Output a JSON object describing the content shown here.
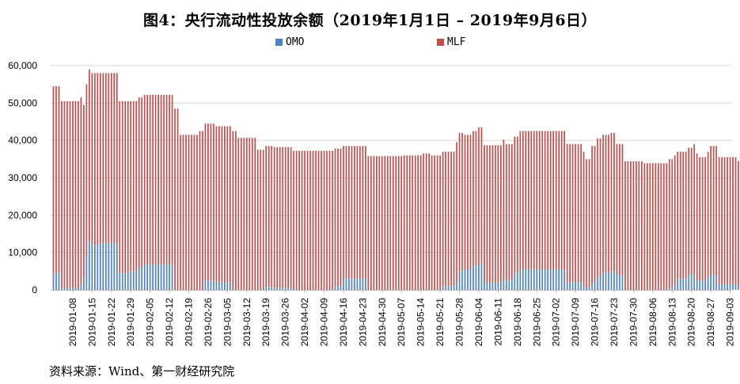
{
  "title": "图4：央行流动性投放余额（2019年1月1日 – 2019年9月6日）",
  "source": "资料来源：Wind、第一财经研究院",
  "chart_data": {
    "type": "bar",
    "stacked": true,
    "series": [
      {
        "name": "OMO",
        "color": "#4f81bd"
      },
      {
        "name": "MLF",
        "color": "#c0504d"
      }
    ],
    "y_tick_labels": [
      "0",
      "10,000",
      "20,000",
      "30,000",
      "40,000",
      "50,000",
      "60,000"
    ],
    "ylim": [
      0,
      60000
    ],
    "x_tick_labels": [
      "2019-01-08",
      "2019-01-15",
      "2019-01-22",
      "2019-01-29",
      "2019-02-05",
      "2019-02-12",
      "2019-02-19",
      "2019-02-26",
      "2019-03-05",
      "2019-03-12",
      "2019-03-19",
      "2019-03-26",
      "2019-04-02",
      "2019-04-09",
      "2019-04-16",
      "2019-04-23",
      "2019-04-30",
      "2019-05-07",
      "2019-05-14",
      "2019-05-21",
      "2019-05-28",
      "2019-06-04",
      "2019-06-11",
      "2019-06-18",
      "2019-06-25",
      "2019-07-02",
      "2019-07-09",
      "2019-07-16",
      "2019-07-23",
      "2019-07-30",
      "2019-08-06",
      "2019-08-13",
      "2019-08-20",
      "2019-08-27",
      "2019-09-03"
    ],
    "grid": true,
    "legend_position": "top",
    "segments": [
      {
        "start": "2019-01-01",
        "end": "2019-01-03",
        "total": 54500,
        "omo": 4500
      },
      {
        "start": "2019-01-04",
        "end": "2019-01-10",
        "total": 50500,
        "omo": 500
      },
      {
        "start": "2019-01-11",
        "end": "2019-01-11",
        "total": 51500,
        "omo": 1500
      },
      {
        "start": "2019-01-12",
        "end": "2019-01-12",
        "total": 49500,
        "omo": 3500
      },
      {
        "start": "2019-01-13",
        "end": "2019-01-13",
        "total": 55000,
        "omo": 9000
      },
      {
        "start": "2019-01-14",
        "end": "2019-01-14",
        "total": 59000,
        "omo": 13000
      },
      {
        "start": "2019-01-15",
        "end": "2019-01-17",
        "total": 58000,
        "omo": 12000
      },
      {
        "start": "2019-01-18",
        "end": "2019-01-24",
        "total": 58000,
        "omo": 12500
      },
      {
        "start": "2019-01-25",
        "end": "2019-01-28",
        "total": 50500,
        "omo": 4500
      },
      {
        "start": "2019-01-29",
        "end": "2019-01-31",
        "total": 50500,
        "omo": 5000
      },
      {
        "start": "2019-02-01",
        "end": "2019-02-02",
        "total": 51500,
        "omo": 6000
      },
      {
        "start": "2019-02-03",
        "end": "2019-02-13",
        "total": 52200,
        "omo": 6800
      },
      {
        "start": "2019-02-14",
        "end": "2019-02-15",
        "total": 48500,
        "omo": 0
      },
      {
        "start": "2019-02-16",
        "end": "2019-02-22",
        "total": 41500,
        "omo": 0
      },
      {
        "start": "2019-02-23",
        "end": "2019-02-24",
        "total": 42500,
        "omo": 0
      },
      {
        "start": "2019-02-25",
        "end": "2019-02-28",
        "total": 44500,
        "omo": 2500
      },
      {
        "start": "2019-03-01",
        "end": "2019-03-06",
        "total": 43800,
        "omo": 2000
      },
      {
        "start": "2019-03-07",
        "end": "2019-03-08",
        "total": 42500,
        "omo": 0
      },
      {
        "start": "2019-03-09",
        "end": "2019-03-15",
        "total": 40700,
        "omo": 0
      },
      {
        "start": "2019-03-16",
        "end": "2019-03-18",
        "total": 37500,
        "omo": 0
      },
      {
        "start": "2019-03-19",
        "end": "2019-03-21",
        "total": 38500,
        "omo": 800
      },
      {
        "start": "2019-03-22",
        "end": "2019-03-28",
        "total": 38200,
        "omo": 500
      },
      {
        "start": "2019-03-29",
        "end": "2019-04-12",
        "total": 37200,
        "omo": 0
      },
      {
        "start": "2019-04-13",
        "end": "2019-04-15",
        "total": 37800,
        "omo": 1000
      },
      {
        "start": "2019-04-16",
        "end": "2019-04-24",
        "total": 38500,
        "omo": 3000
      },
      {
        "start": "2019-04-25",
        "end": "2019-05-07",
        "total": 35800,
        "omo": 0
      },
      {
        "start": "2019-05-08",
        "end": "2019-05-14",
        "total": 36000,
        "omo": 0
      },
      {
        "start": "2019-05-15",
        "end": "2019-05-17",
        "total": 36500,
        "omo": 0
      },
      {
        "start": "2019-05-18",
        "end": "2019-05-21",
        "total": 36000,
        "omo": 0
      },
      {
        "start": "2019-05-22",
        "end": "2019-05-26",
        "total": 37000,
        "omo": 1000
      },
      {
        "start": "2019-05-27",
        "end": "2019-05-27",
        "total": 39500,
        "omo": 2000
      },
      {
        "start": "2019-05-28",
        "end": "2019-05-29",
        "total": 42000,
        "omo": 5000
      },
      {
        "start": "2019-05-30",
        "end": "2019-06-01",
        "total": 41500,
        "omo": 5500
      },
      {
        "start": "2019-06-02",
        "end": "2019-06-03",
        "total": 42500,
        "omo": 6500
      },
      {
        "start": "2019-06-04",
        "end": "2019-06-05",
        "total": 43500,
        "omo": 7000
      },
      {
        "start": "2019-06-06",
        "end": "2019-06-12",
        "total": 38700,
        "omo": 2000
      },
      {
        "start": "2019-06-13",
        "end": "2019-06-13",
        "total": 40200,
        "omo": 3000
      },
      {
        "start": "2019-06-14",
        "end": "2019-06-16",
        "total": 39000,
        "omo": 2500
      },
      {
        "start": "2019-06-17",
        "end": "2019-06-18",
        "total": 41000,
        "omo": 4500
      },
      {
        "start": "2019-06-19",
        "end": "2019-07-05",
        "total": 42500,
        "omo": 5500
      },
      {
        "start": "2019-07-06",
        "end": "2019-07-11",
        "total": 39000,
        "omo": 2000
      },
      {
        "start": "2019-07-12",
        "end": "2019-07-12",
        "total": 37000,
        "omo": 1000
      },
      {
        "start": "2019-07-13",
        "end": "2019-07-14",
        "total": 35000,
        "omo": 500
      },
      {
        "start": "2019-07-15",
        "end": "2019-07-16",
        "total": 38500,
        "omo": 2000
      },
      {
        "start": "2019-07-17",
        "end": "2019-07-18",
        "total": 40500,
        "omo": 3500
      },
      {
        "start": "2019-07-19",
        "end": "2019-07-21",
        "total": 41500,
        "omo": 4500
      },
      {
        "start": "2019-07-22",
        "end": "2019-07-23",
        "total": 42000,
        "omo": 5000
      },
      {
        "start": "2019-07-24",
        "end": "2019-07-26",
        "total": 39000,
        "omo": 4000
      },
      {
        "start": "2019-07-27",
        "end": "2019-08-02",
        "total": 34400,
        "omo": 0
      },
      {
        "start": "2019-08-03",
        "end": "2019-08-11",
        "total": 33900,
        "omo": 0
      },
      {
        "start": "2019-08-12",
        "end": "2019-08-13",
        "total": 35000,
        "omo": 500
      },
      {
        "start": "2019-08-14",
        "end": "2019-08-14",
        "total": 36000,
        "omo": 1500
      },
      {
        "start": "2019-08-15",
        "end": "2019-08-18",
        "total": 37000,
        "omo": 3000
      },
      {
        "start": "2019-08-19",
        "end": "2019-08-20",
        "total": 38000,
        "omo": 4000
      },
      {
        "start": "2019-08-21",
        "end": "2019-08-21",
        "total": 39000,
        "omo": 4500
      },
      {
        "start": "2019-08-22",
        "end": "2019-08-22",
        "total": 36500,
        "omo": 2500
      },
      {
        "start": "2019-08-23",
        "end": "2019-08-25",
        "total": 35500,
        "omo": 2500
      },
      {
        "start": "2019-08-26",
        "end": "2019-08-26",
        "total": 37000,
        "omo": 3500
      },
      {
        "start": "2019-08-27",
        "end": "2019-08-29",
        "total": 38500,
        "omo": 4000
      },
      {
        "start": "2019-08-30",
        "end": "2019-09-05",
        "total": 35500,
        "omo": 1500
      },
      {
        "start": "2019-09-06",
        "end": "2019-09-06",
        "total": 34500,
        "omo": 1000
      }
    ]
  }
}
